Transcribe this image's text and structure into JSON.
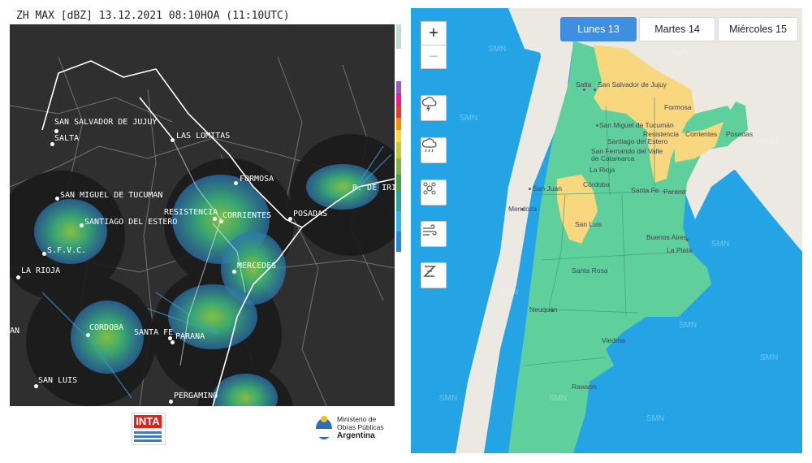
{
  "radar": {
    "title": "ZH MAX [dBZ] 13.12.2021 08:10HOA (11:10UTC)",
    "cities": [
      {
        "name": "SAN SALVADOR DE JUJUY"
      },
      {
        "name": "SALTA"
      },
      {
        "name": "LAS LOMITAS"
      },
      {
        "name": "FORMOSA"
      },
      {
        "name": "SAN MIGUEL DE TUCUMAN"
      },
      {
        "name": "SANTIAGO DEL ESTERO"
      },
      {
        "name": "RESISTENCIA"
      },
      {
        "name": "CORRIENTES"
      },
      {
        "name": "POSADAS"
      },
      {
        "name": "B. DE IRI"
      },
      {
        "name": "S.F.V.C."
      },
      {
        "name": "LA RIOJA"
      },
      {
        "name": "MERCEDES"
      },
      {
        "name": "CORDOBA"
      },
      {
        "name": "SANTA FE"
      },
      {
        "name": "PARANA"
      },
      {
        "name": "SAN LUIS"
      },
      {
        "name": "PERGAMINO"
      },
      {
        "name": "AN"
      }
    ],
    "footer": {
      "inta_logo_text": "INTA",
      "ministerio_line1": "Ministerio de",
      "ministerio_line2": "Obras Públicas",
      "ministerio_line3": "Argentina"
    }
  },
  "alert_map": {
    "zoom_in_label": "+",
    "zoom_out_label": "−",
    "layer_buttons": [
      {
        "icon": "storm-cloud-icon"
      },
      {
        "icon": "rain-cloud-icon"
      },
      {
        "icon": "snow-icon"
      },
      {
        "icon": "wind-icon"
      },
      {
        "icon": "zonda-icon"
      }
    ],
    "day_tabs": [
      {
        "label": "Lunes 13",
        "active": true
      },
      {
        "label": "Martes 14",
        "active": false
      },
      {
        "label": "Miércoles 15",
        "active": false
      }
    ],
    "provinces": [
      {
        "name": "Salta"
      },
      {
        "name": "San Salvador de Jujuy"
      },
      {
        "name": "Formosa"
      },
      {
        "name": "San Miguel de Tucumán"
      },
      {
        "name": "Resistencia"
      },
      {
        "name": "Corrientes"
      },
      {
        "name": "Posadas"
      },
      {
        "name": "Santiago del Estero"
      },
      {
        "name": "San Fernando del Valle de Catamarca"
      },
      {
        "name": "La Rioja"
      },
      {
        "name": "San Juan"
      },
      {
        "name": "Córdoba"
      },
      {
        "name": "Santa Fe"
      },
      {
        "name": "Paraná"
      },
      {
        "name": "Mendoza"
      },
      {
        "name": "San Luis"
      },
      {
        "name": "Buenos Aires"
      },
      {
        "name": "La Plata"
      },
      {
        "name": "Santa Rosa"
      },
      {
        "name": "Neuquén"
      },
      {
        "name": "Viedma"
      },
      {
        "name": "Rawson"
      }
    ],
    "watermark_text": "SMN",
    "colors": {
      "ocean": "#24a4e4",
      "land_neighbors": "#ece9e3",
      "no_alert": "#5fcf9b",
      "yellow_alert": "#f9d77e",
      "active_tab": "#3f8ee0"
    }
  }
}
